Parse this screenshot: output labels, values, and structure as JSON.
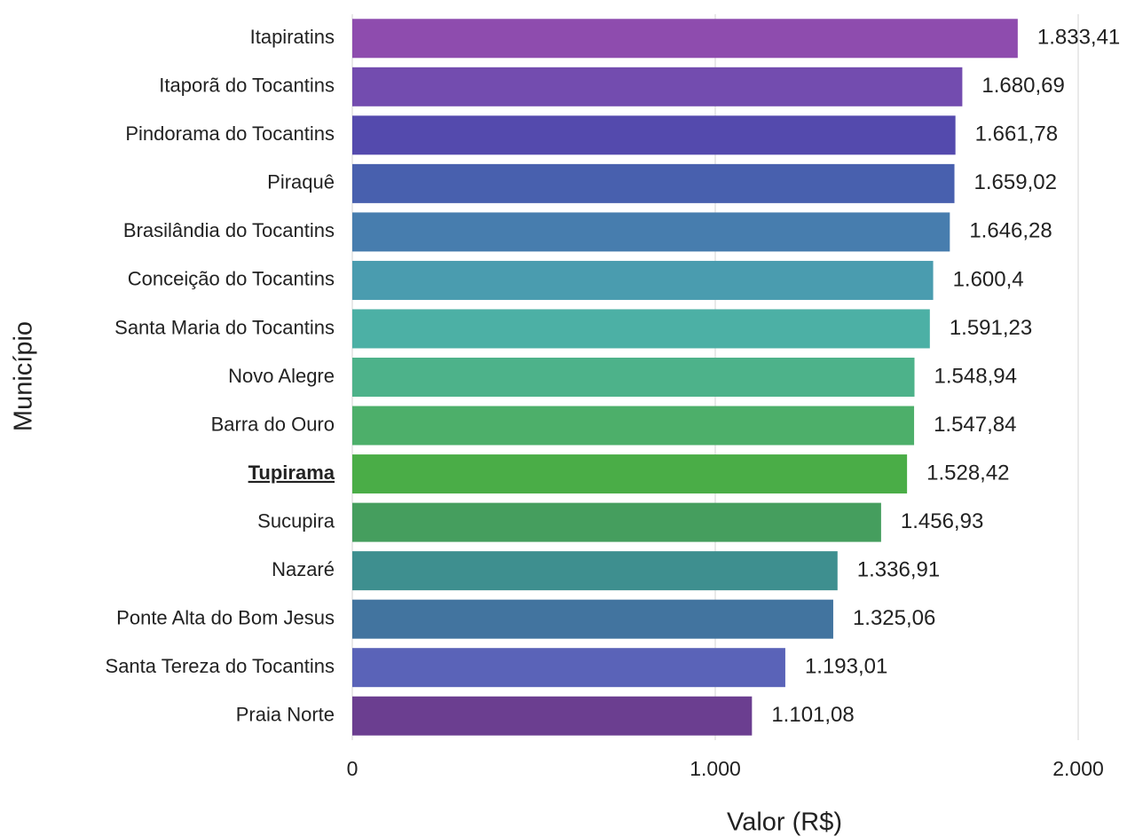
{
  "chart_data": {
    "type": "bar",
    "orientation": "horizontal",
    "x_label": "Valor (R$)",
    "y_label": "Município",
    "categories": [
      "Itapiratins",
      "Itaporã do Tocantins",
      "Pindorama do Tocantins",
      "Piraquê",
      "Brasilândia do Tocantins",
      "Conceição do Tocantins",
      "Santa Maria do Tocantins",
      "Novo Alegre",
      "Barra do Ouro",
      "Tupirama",
      "Sucupira",
      "Nazaré",
      "Ponte Alta do Bom Jesus",
      "Santa Tereza do Tocantins",
      "Praia Norte"
    ],
    "values": [
      1833.41,
      1680.69,
      1661.78,
      1659.02,
      1646.28,
      1600.4,
      1591.23,
      1548.94,
      1547.84,
      1528.42,
      1456.93,
      1336.91,
      1325.06,
      1193.01,
      1101.08
    ],
    "value_labels": [
      "1.833,41",
      "1.680,69",
      "1.661,78",
      "1.659,02",
      "1.646,28",
      "1.600,4",
      "1.591,23",
      "1.548,94",
      "1.547,84",
      "1.528,42",
      "1.456,93",
      "1.336,91",
      "1.325,06",
      "1.193,01",
      "1.101,08"
    ],
    "colors": [
      "#8e4cae",
      "#734caf",
      "#544aad",
      "#4860ae",
      "#477dae",
      "#4a9caf",
      "#4cb0a5",
      "#4db28a",
      "#4daf6a",
      "#4aad47",
      "#459e5e",
      "#3e8f8f",
      "#42749f",
      "#5a63b8",
      "#6b3e90"
    ],
    "highlight": "Tupirama",
    "xlim": [
      0,
      2000
    ],
    "xticks": [
      0,
      {
        "value": 1000,
        "label": "1.000"
      },
      {
        "value": 2000,
        "label": "2.000"
      }
    ],
    "grid": true
  }
}
